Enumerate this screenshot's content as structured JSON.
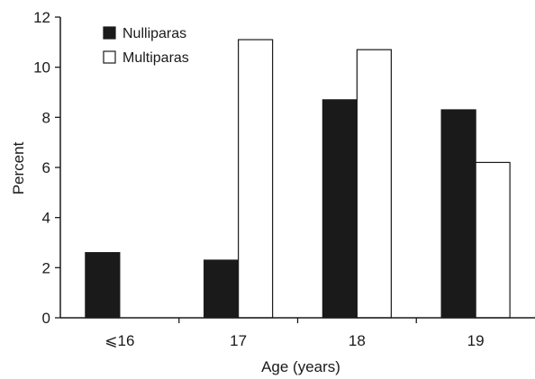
{
  "chart_data": {
    "type": "bar",
    "categories": [
      "⩽16",
      "17",
      "18",
      "19"
    ],
    "series": [
      {
        "name": "Nulliparas",
        "values": [
          2.6,
          2.3,
          8.7,
          8.3
        ],
        "fill": "#1a1a1a"
      },
      {
        "name": "Multiparas",
        "values": [
          0,
          11.1,
          10.7,
          6.2
        ],
        "fill": "#ffffff"
      }
    ],
    "xlabel": "Age (years)",
    "ylabel": "Percent",
    "ylim": [
      0,
      12
    ],
    "yticks": [
      0,
      2,
      4,
      6,
      8,
      10,
      12
    ],
    "grid": false,
    "legend_position": "top-left"
  }
}
